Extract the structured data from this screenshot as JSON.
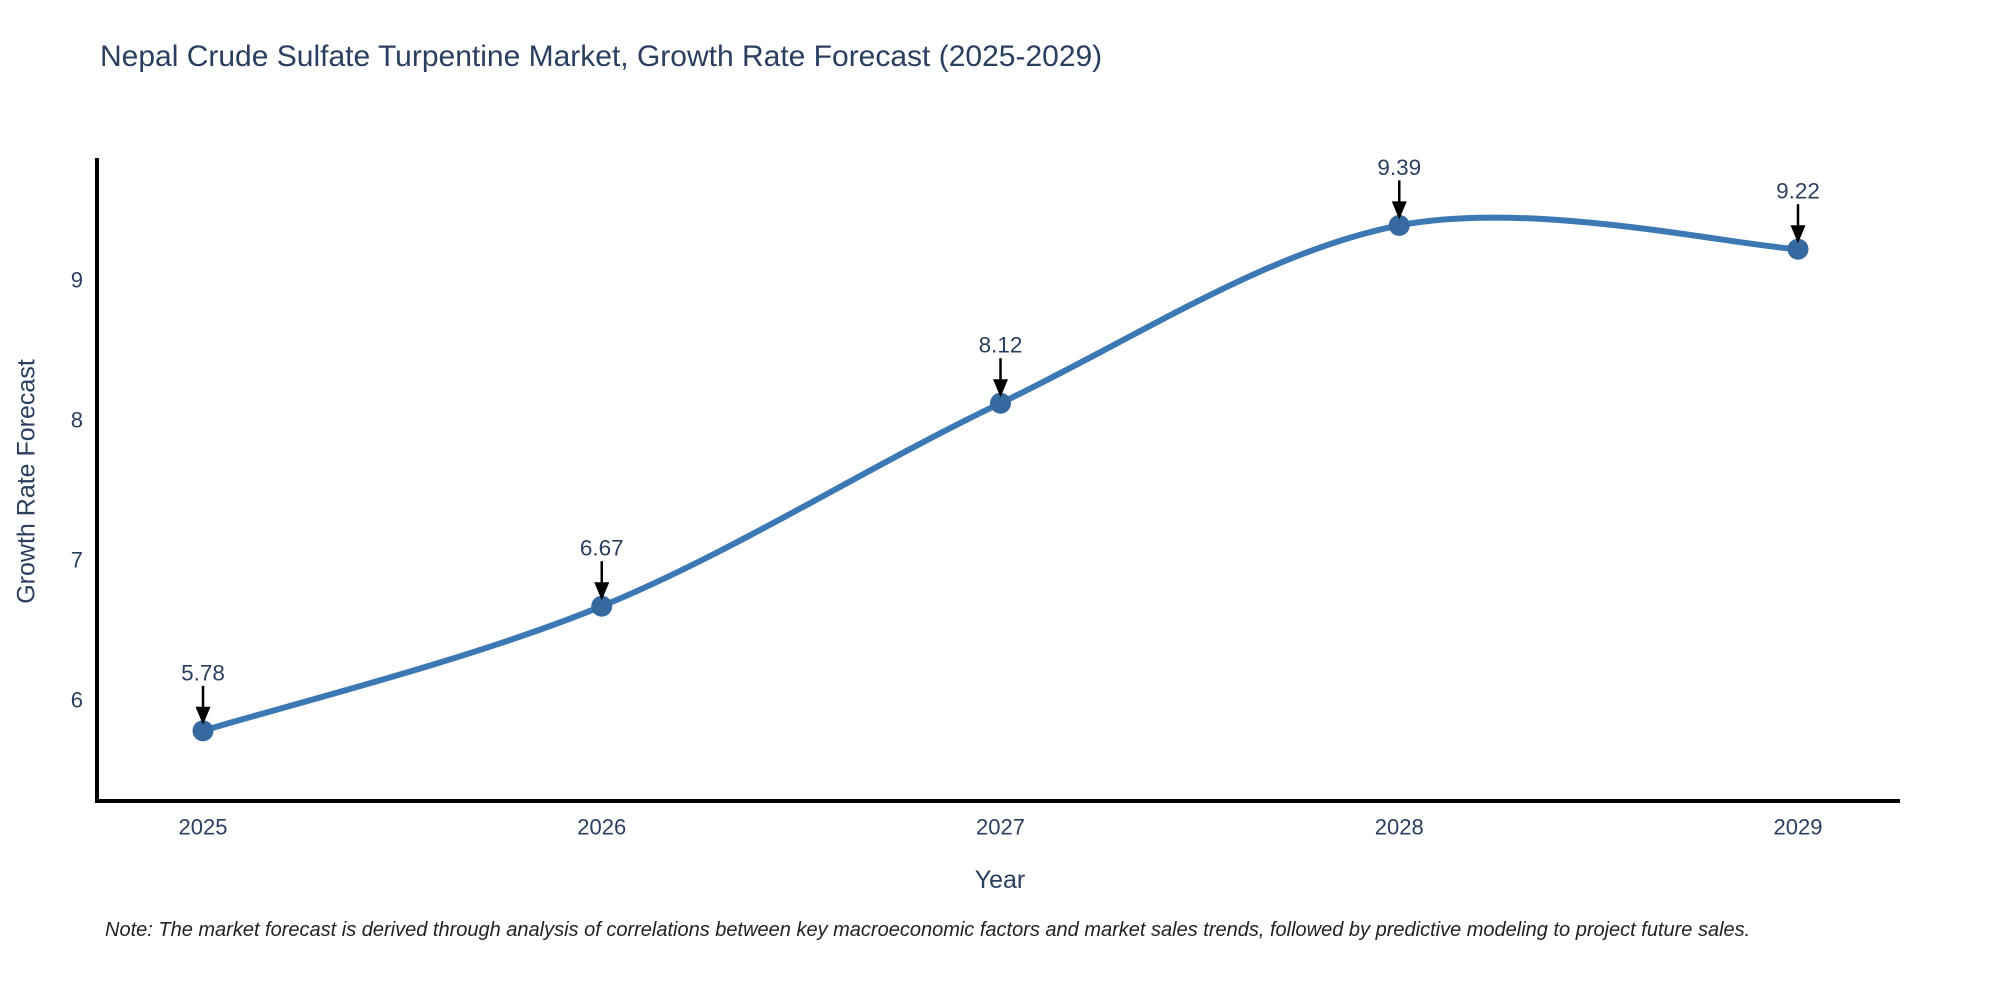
{
  "chart_data": {
    "type": "line",
    "title": "Nepal Crude Sulfate Turpentine Market, Growth Rate Forecast (2025-2029)",
    "xlabel": "Year",
    "ylabel": "Growth Rate Forecast",
    "note": "Note: The market forecast is derived through analysis of correlations between key macroeconomic factors and market sales trends, followed by predictive modeling to project future sales.",
    "x": [
      2025,
      2026,
      2027,
      2028,
      2029
    ],
    "values": [
      5.78,
      6.67,
      8.12,
      9.39,
      9.22
    ],
    "point_labels": [
      "5.78",
      "6.67",
      "8.12",
      "9.39",
      "9.22"
    ],
    "yticks": [
      6,
      7,
      8,
      9
    ],
    "ylim": [
      5.28,
      9.86
    ],
    "line_shape": "spline",
    "grid": false,
    "legend": false,
    "annotations_style": "value label above each point with black down-arrow",
    "colors": {
      "line": "#3c79b4",
      "marker": "#35699f",
      "text": "#2a3f5f",
      "axis": "#000000",
      "arrow": "#000000",
      "note": "#222222"
    }
  }
}
